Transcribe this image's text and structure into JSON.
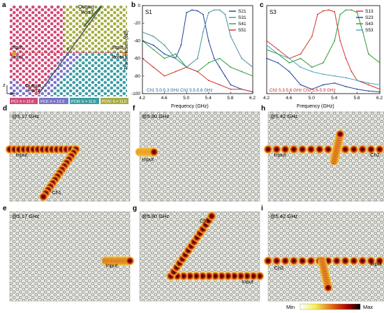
{
  "panel_letters": {
    "a": "a",
    "b": "b",
    "c": "c",
    "d": "d",
    "e": "e",
    "f": "f",
    "g": "g",
    "h": "h",
    "i": "i"
  },
  "panel_a": {
    "port_labels": {
      "port1": "Port1",
      "port2": "Port2",
      "port3": "Port3",
      "port4": "Port4",
      "port5": "Port5"
    },
    "io_labels": {
      "output": "Output",
      "input_left": "Input",
      "input_right": "Input",
      "output_bottom": "Output"
    },
    "gamma_label": "Γ",
    "legend": [
      {
        "label": "PCI: h = 12.6",
        "color": "#d24a78"
      },
      {
        "label": "PCII: h = 13.3",
        "color": "#7b74c6"
      },
      {
        "label": "PCIII: h = 11.6",
        "color": "#3e9ea3"
      },
      {
        "label": "PCIV: h = 11.0",
        "color": "#a7ad43"
      }
    ],
    "axis": {
      "z": "z",
      "x": "x"
    }
  },
  "chart_data": [
    {
      "type": "line",
      "panel": "b",
      "tag": "S1",
      "xlabel": "Frequency (GHz)",
      "ylabel": "Transmission (dB)",
      "xlim": [
        4.2,
        6.2
      ],
      "ylim": [
        -100,
        0
      ],
      "xticks": [
        "4.2",
        "4.6",
        "5.0",
        "5.4",
        "5.8",
        "6.2"
      ],
      "yticks": [
        "0",
        "-20",
        "-40",
        "-60",
        "-80",
        "-100"
      ],
      "channel_note": "Ch1 5.0-5.3 GHz Ch2 5.5-5.6 GHz",
      "series": [
        {
          "name": "S21",
          "color": "#1f3f9e",
          "x": [
            4.2,
            4.4,
            4.6,
            4.8,
            4.9,
            5.0,
            5.1,
            5.2,
            5.3,
            5.4,
            5.5,
            5.6,
            5.7,
            5.8,
            6.0,
            6.2
          ],
          "y": [
            -40,
            -45,
            -55,
            -60,
            -45,
            -8,
            -5,
            -6,
            -10,
            -40,
            -60,
            -70,
            -80,
            -90,
            -95,
            -98
          ]
        },
        {
          "name": "S31",
          "color": "#4a8f9b",
          "x": [
            4.2,
            4.4,
            4.6,
            4.8,
            5.0,
            5.2,
            5.3,
            5.4,
            5.5,
            5.6,
            5.7,
            5.8,
            6.0,
            6.2
          ],
          "y": [
            -30,
            -35,
            -45,
            -60,
            -70,
            -60,
            -30,
            -8,
            -5,
            -5,
            -10,
            -35,
            -60,
            -70
          ]
        },
        {
          "name": "S41",
          "color": "#2e9d3a",
          "x": [
            4.2,
            4.4,
            4.6,
            4.8,
            5.0,
            5.2,
            5.4,
            5.6,
            5.8,
            6.0,
            6.2
          ],
          "y": [
            -40,
            -50,
            -60,
            -55,
            -70,
            -75,
            -65,
            -60,
            -70,
            -75,
            -80
          ]
        },
        {
          "name": "S51",
          "color": "#d0342c",
          "x": [
            4.2,
            4.4,
            4.6,
            4.8,
            5.0,
            5.2,
            5.4,
            5.6,
            5.8,
            6.0,
            6.2
          ],
          "y": [
            -60,
            -70,
            -80,
            -75,
            -70,
            -75,
            -85,
            -90,
            -95,
            -95,
            -98
          ]
        }
      ]
    },
    {
      "type": "line",
      "panel": "c",
      "tag": "S3",
      "xlabel": "Frequency (GHz)",
      "ylabel": "",
      "xlim": [
        4.2,
        6.2
      ],
      "ylim": [
        -100,
        0
      ],
      "xticks": [
        "4.2",
        "4.6",
        "5.0",
        "5.4",
        "5.8",
        "6.2"
      ],
      "yticks": [],
      "channel_note": "Ch2 5.3-5.6 GHz Ch3 5.6-5.9 GHz",
      "series": [
        {
          "name": "S13",
          "color": "#d0342c",
          "x": [
            4.2,
            4.4,
            4.6,
            4.8,
            5.0,
            5.1,
            5.2,
            5.3,
            5.4,
            5.5,
            5.6,
            5.7,
            5.8,
            6.0,
            6.2
          ],
          "y": [
            -40,
            -50,
            -60,
            -55,
            -35,
            -10,
            -6,
            -5,
            -7,
            -40,
            -60,
            -75,
            -85,
            -90,
            -95
          ]
        },
        {
          "name": "S23",
          "color": "#1f3f9e",
          "x": [
            4.2,
            4.4,
            4.6,
            4.8,
            5.0,
            5.2,
            5.4,
            5.6,
            5.8,
            6.0,
            6.2
          ],
          "y": [
            -60,
            -65,
            -75,
            -90,
            -95,
            -90,
            -88,
            -92,
            -95,
            -97,
            -98
          ]
        },
        {
          "name": "S43",
          "color": "#2e9d3a",
          "x": [
            4.2,
            4.4,
            4.6,
            4.8,
            5.0,
            5.2,
            5.4,
            5.5,
            5.6,
            5.7,
            5.8,
            5.9,
            6.0,
            6.2
          ],
          "y": [
            -50,
            -55,
            -65,
            -60,
            -70,
            -65,
            -40,
            -10,
            -5,
            -5,
            -8,
            -30,
            -55,
            -65
          ]
        },
        {
          "name": "S53",
          "color": "#4aa6c2",
          "x": [
            4.2,
            4.4,
            4.6,
            4.8,
            5.0,
            5.2,
            5.4,
            5.6,
            5.8,
            6.0,
            6.2
          ],
          "y": [
            -45,
            -55,
            -60,
            -70,
            -75,
            -78,
            -80,
            -82,
            -85,
            -88,
            -90
          ]
        }
      ]
    }
  ],
  "field_maps": [
    {
      "id": "d",
      "freq": "@5.17 GHz",
      "labels": [
        "Input",
        "Ch1"
      ]
    },
    {
      "id": "e",
      "freq": "@5.17 GHz",
      "labels": [
        "Input"
      ]
    },
    {
      "id": "f",
      "freq": "@5.80 GHz",
      "labels": [
        "Input"
      ]
    },
    {
      "id": "g",
      "freq": "@5.80 GHz",
      "labels": [
        "Ch3",
        "Input"
      ]
    },
    {
      "id": "h",
      "freq": "@5.42 GHz",
      "labels": [
        "Input",
        "Ch2"
      ]
    },
    {
      "id": "i",
      "freq": "@5.42 GHz",
      "labels": [
        "Ch2",
        "Input"
      ]
    }
  ],
  "colorbar": {
    "min": "Min",
    "max": "Max"
  }
}
